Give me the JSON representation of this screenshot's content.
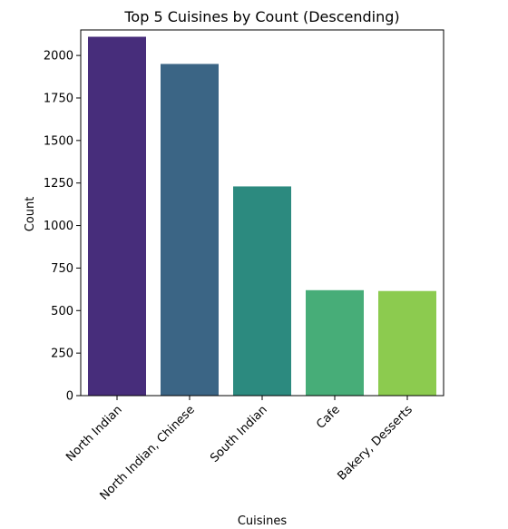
{
  "chart_data": {
    "type": "bar",
    "title": "Top 5 Cuisines by Count (Descending)",
    "xlabel": "Cuisines",
    "ylabel": "Count",
    "categories": [
      "North Indian",
      "North Indian, Chinese",
      "South Indian",
      "Cafe",
      "Bakery, Desserts"
    ],
    "values": [
      2110,
      1950,
      1230,
      620,
      615
    ],
    "ylim": [
      0,
      2150
    ],
    "yticks": [
      0,
      250,
      500,
      750,
      1000,
      1250,
      1500,
      1750,
      2000
    ],
    "colors": [
      "#472d7b",
      "#3b6585",
      "#2c8a7f",
      "#47ad78",
      "#8ccb4f"
    ],
    "grid": false,
    "legend": "none"
  }
}
